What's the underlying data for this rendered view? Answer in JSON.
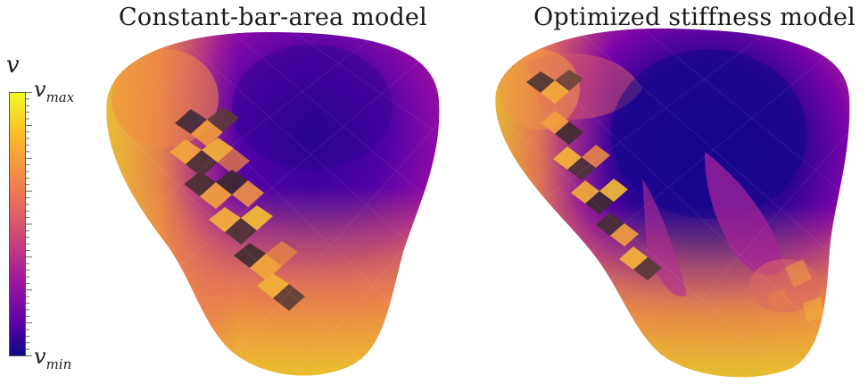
{
  "titles": {
    "left": "Constant-bar-area model",
    "right": "Optimized stiffness model"
  },
  "colorbar": {
    "symbol": "v",
    "max_label_base": "v",
    "max_label_sub": "max",
    "min_label_base": "v",
    "min_label_sub": "min",
    "colormap": "plasma",
    "colors": [
      "#0d0887",
      "#5c01a6",
      "#9c179e",
      "#cc4778",
      "#ed7953",
      "#fdb42f",
      "#f0f921"
    ]
  }
}
